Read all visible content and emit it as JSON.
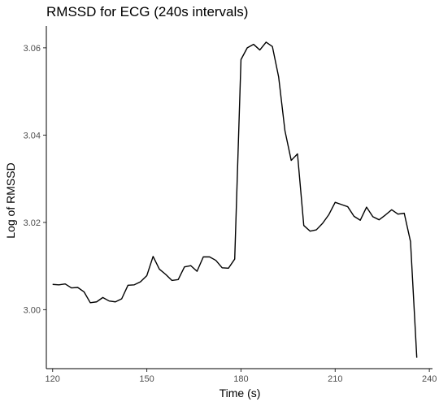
{
  "chart_data": {
    "type": "line",
    "title": "RMSSD for ECG (240s intervals)",
    "xlabel": "Time (s)",
    "ylabel": "Log of RMSSD",
    "xlim": [
      118,
      241
    ],
    "ylim": [
      2.9865,
      3.065
    ],
    "xticks": [
      120,
      150,
      180,
      210,
      240
    ],
    "xtick_labels": [
      "120",
      "150",
      "180",
      "210",
      "240"
    ],
    "yticks": [
      3.0,
      3.02,
      3.04,
      3.06
    ],
    "ytick_labels": [
      "3.00",
      "3.02",
      "3.04",
      "3.06"
    ],
    "grid": false,
    "legend": "none",
    "line_color": "#000000",
    "series": [
      {
        "x": [
          120,
          122,
          124,
          126,
          128,
          130,
          132,
          134,
          136,
          138,
          140,
          142,
          144,
          146,
          148,
          150,
          152,
          154,
          156,
          158,
          160,
          162,
          164,
          166,
          168,
          170,
          172,
          174,
          176,
          178,
          180,
          182,
          184,
          186,
          188,
          190,
          192,
          194,
          196,
          198,
          200,
          202,
          204,
          206,
          208,
          210,
          212,
          214,
          216,
          218,
          220,
          222,
          224,
          226,
          228,
          230,
          232,
          234,
          236
        ],
        "y": [
          3.0058,
          3.0057,
          3.0059,
          3.005,
          3.0051,
          3.0041,
          3.0016,
          3.0018,
          3.0028,
          3.002,
          3.0018,
          3.0025,
          3.0056,
          3.0057,
          3.0064,
          3.0078,
          3.0122,
          3.0093,
          3.0081,
          3.0067,
          3.0069,
          3.0098,
          3.0101,
          3.0088,
          3.0121,
          3.0121,
          3.0113,
          3.0096,
          3.0095,
          3.0116,
          3.0573,
          3.06,
          3.0608,
          3.0595,
          3.0613,
          3.0603,
          3.0533,
          3.041,
          3.0342,
          3.0357,
          3.0193,
          3.018,
          3.0183,
          3.0198,
          3.0218,
          3.0246,
          3.0241,
          3.0236,
          3.0214,
          3.0205,
          3.0235,
          3.0213,
          3.0206,
          3.0217,
          3.0229,
          3.0219,
          3.0221,
          3.0156,
          2.989
        ]
      }
    ]
  }
}
